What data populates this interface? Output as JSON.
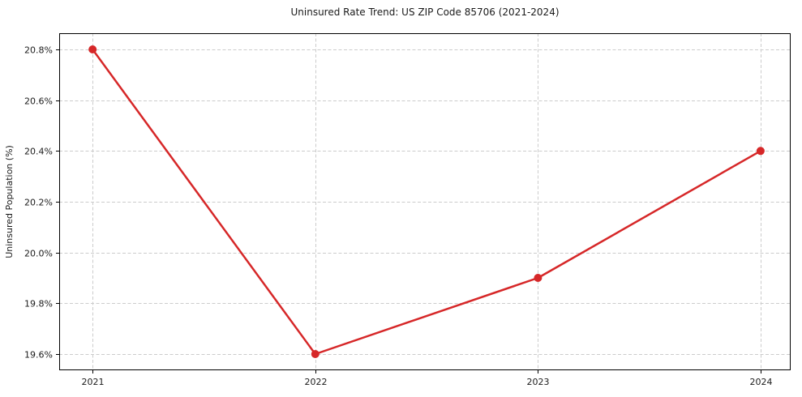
{
  "chart_data": {
    "type": "line",
    "title": "Uninsured Rate Trend: US ZIP Code 85706 (2021-2024)",
    "xlabel": "",
    "ylabel": "Uninsured Population (%)",
    "x": [
      2021,
      2022,
      2023,
      2024
    ],
    "x_tick_labels": [
      "2021",
      "2022",
      "2023",
      "2024"
    ],
    "y_ticks": [
      19.6,
      19.8,
      20.0,
      20.2,
      20.4,
      20.6,
      20.8
    ],
    "y_tick_labels": [
      "19.6%",
      "19.8%",
      "20.0%",
      "20.2%",
      "20.4%",
      "20.6%",
      "20.8%"
    ],
    "series": [
      {
        "values": [
          20.8,
          19.6,
          19.9,
          20.4
        ],
        "color": "#d62728"
      }
    ],
    "xlim": [
      2020.85,
      2024.135
    ],
    "ylim": [
      19.536,
      20.864
    ],
    "grid": true,
    "legend": "none",
    "styles": {
      "grid_color": "#cccccc",
      "grid_dash": "4 2.5",
      "axis_color": "#000000",
      "text_color": "#1a1a1a",
      "background": "#ffffff",
      "line_width": 2.5,
      "marker": "circle",
      "marker_radius": 5,
      "tick_length": 4
    }
  }
}
